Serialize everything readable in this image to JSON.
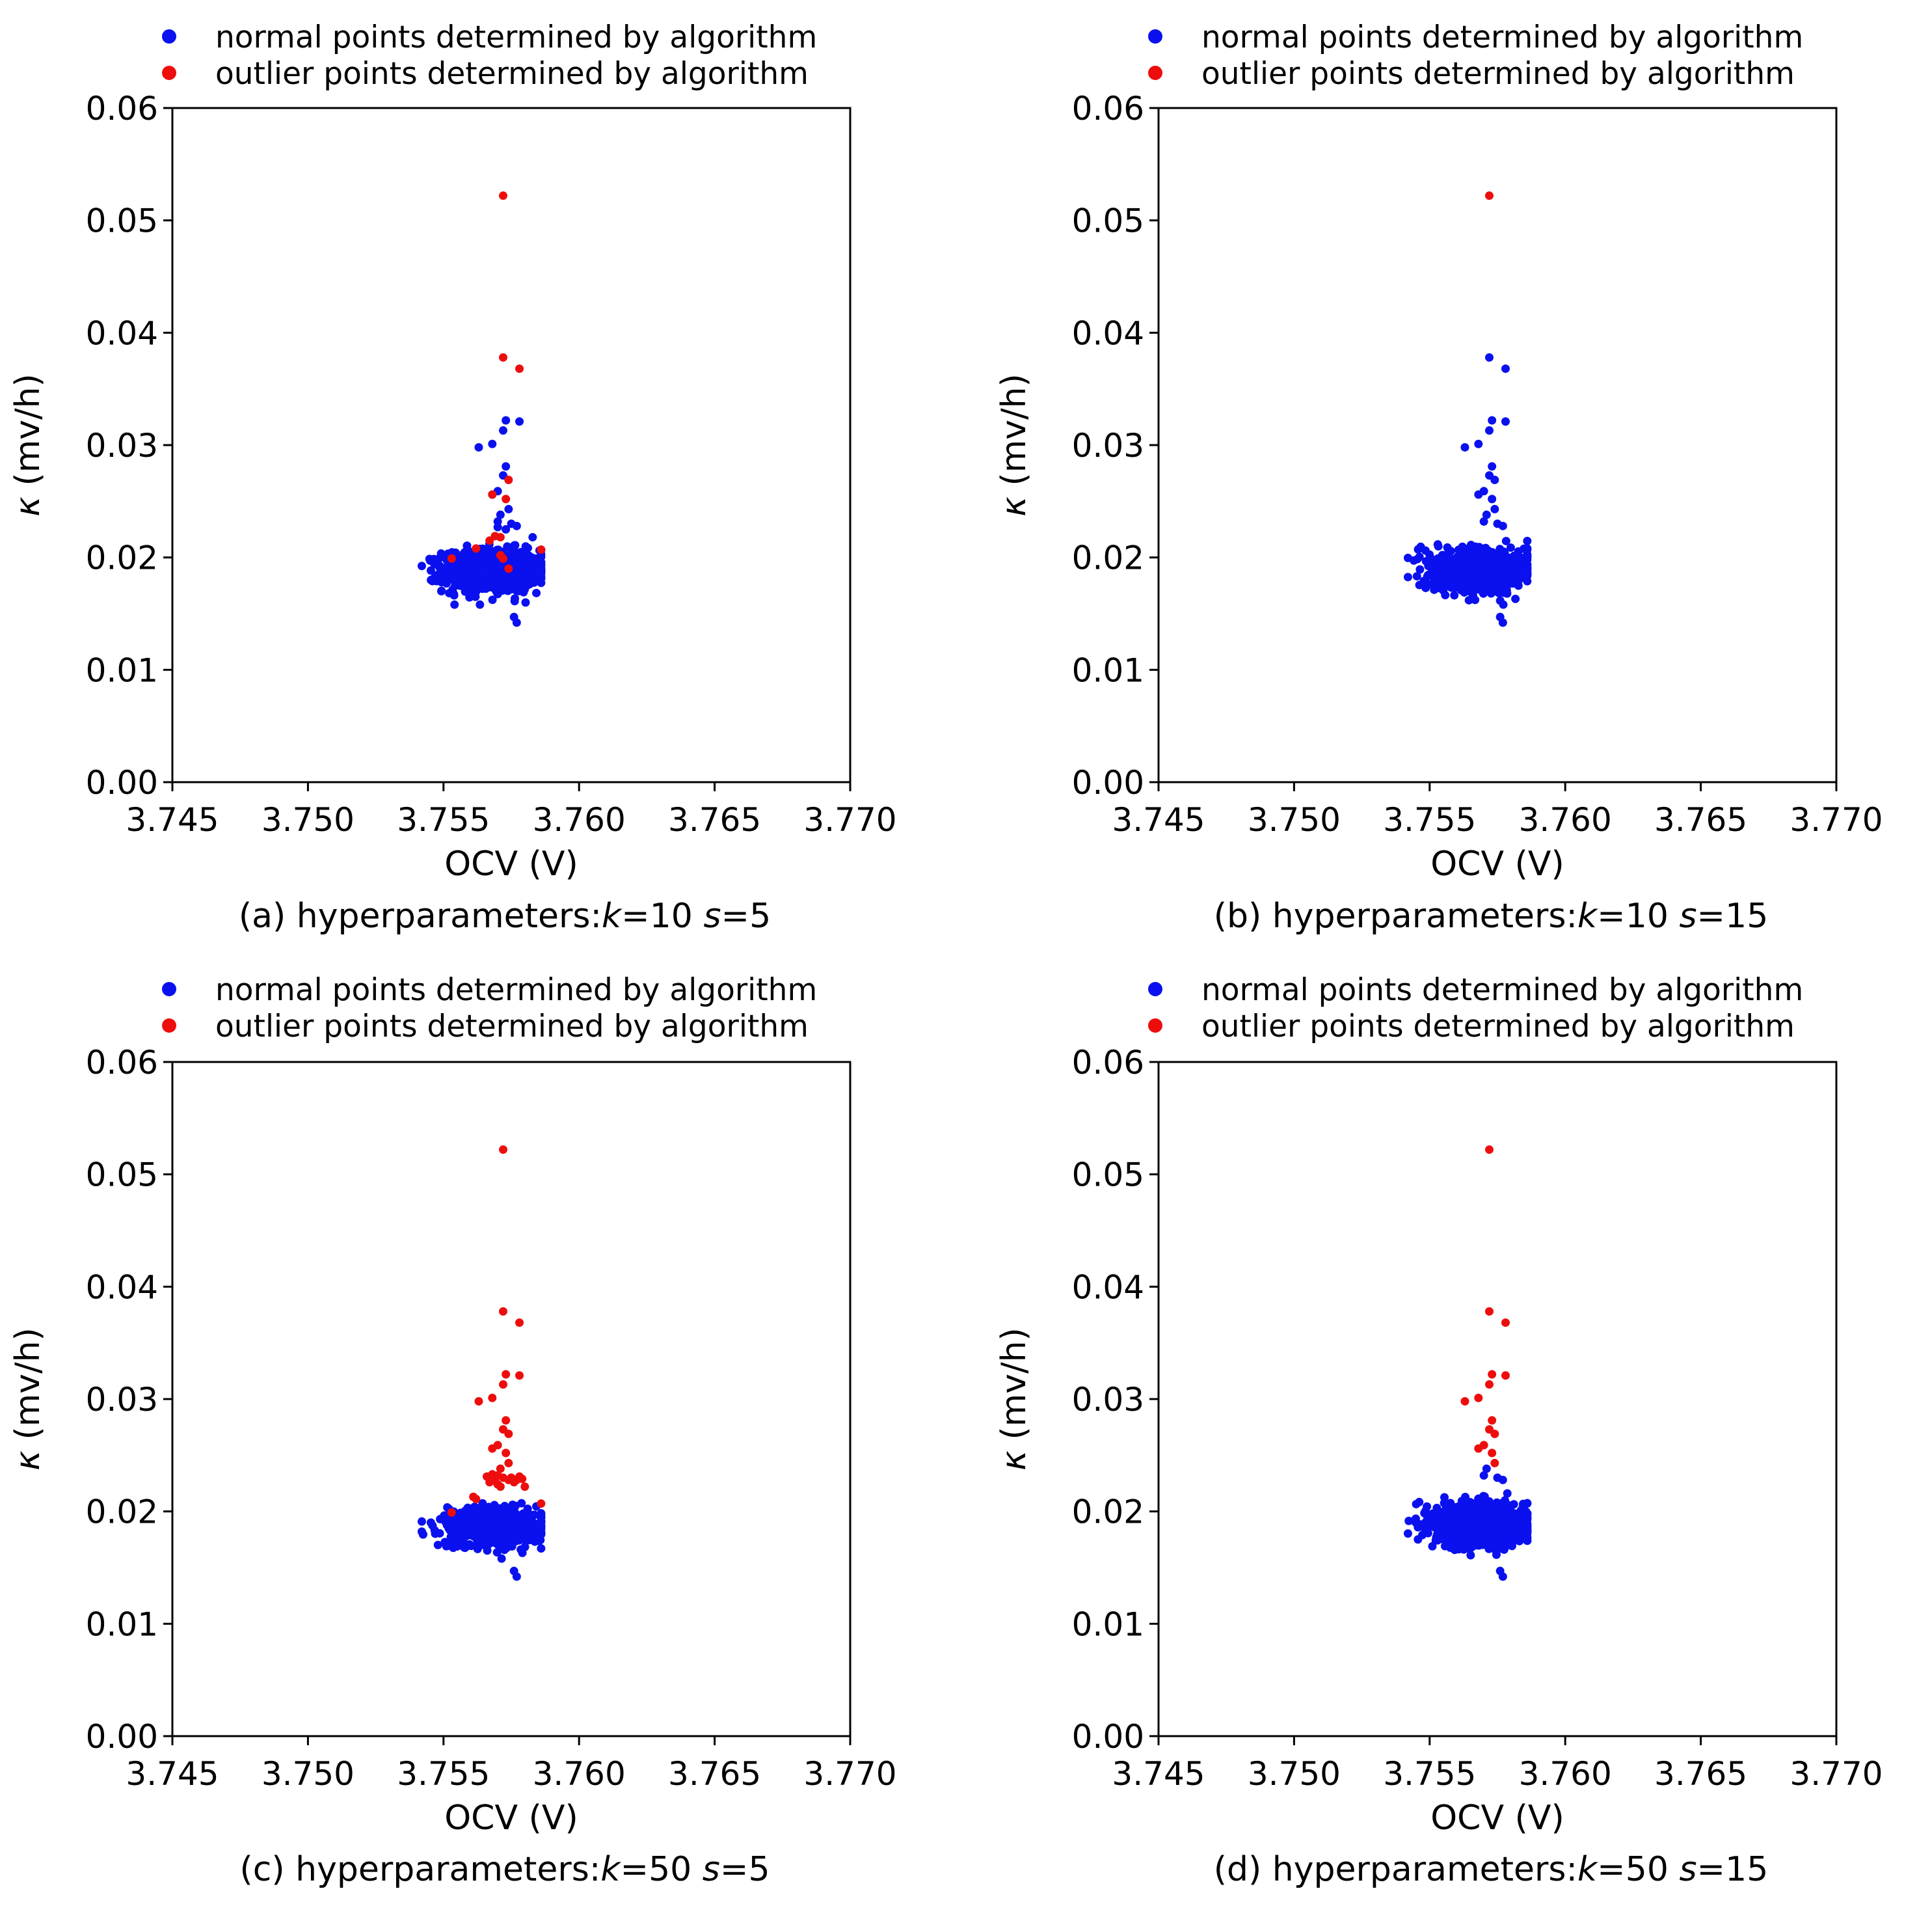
{
  "figure": {
    "legend": {
      "normal_label": "normal points determined by algorithm",
      "outlier_label": "outlier points determined by algorithm",
      "normal_color": "#0a10ee",
      "outlier_color": "#ee0d0d"
    }
  },
  "chart_data": [
    {
      "type": "scatter",
      "panel": "a",
      "caption": {
        "prefix": "(a) hyperparameters:",
        "k_symbol": "k",
        "k_value": "=10 ",
        "s_symbol": "s",
        "s_value": "=5"
      },
      "xlabel": "OCV (V)",
      "ylabel_symbol": "κ",
      "ylabel_unit": " (mv/h)",
      "xlim": [
        3.745,
        3.77
      ],
      "ylim": [
        0.0,
        0.06
      ],
      "xticks": [
        "3.745",
        "3.750",
        "3.755",
        "3.760",
        "3.765",
        "3.770"
      ],
      "yticks": [
        "0.00",
        "0.01",
        "0.02",
        "0.03",
        "0.04",
        "0.05",
        "0.06"
      ],
      "series": [
        {
          "name": "normal points determined by algorithm",
          "color": "#0a10ee",
          "points": [
            [
              3.7563,
              0.0298
            ],
            [
              3.7568,
              0.0301
            ],
            [
              3.7572,
              0.0313
            ],
            [
              3.7573,
              0.0322
            ],
            [
              3.7578,
              0.0321
            ],
            [
              3.7572,
              0.0273
            ],
            [
              3.7573,
              0.0281
            ],
            [
              3.757,
              0.0259
            ],
            [
              3.7568,
              0.0256
            ],
            [
              3.7574,
              0.0243
            ],
            [
              3.7571,
              0.0238
            ],
            [
              3.757,
              0.0232
            ],
            [
              3.7575,
              0.023
            ],
            [
              3.7577,
              0.0228
            ],
            [
              3.757,
              0.0227
            ],
            [
              3.7573,
              0.0225
            ],
            [
              3.7577,
              0.0142
            ],
            [
              3.7576,
              0.0147
            ]
          ],
          "cluster": {
            "x_center": 3.7568,
            "x_spread": 0.0009,
            "y_center": 0.0188,
            "y_spread": 0.0011,
            "count": 900
          }
        },
        {
          "name": "outlier points determined by algorithm",
          "color": "#ee0d0d",
          "points": [
            [
              3.7572,
              0.0522
            ],
            [
              3.7572,
              0.0378
            ],
            [
              3.7578,
              0.0368
            ],
            [
              3.7574,
              0.0269
            ],
            [
              3.7573,
              0.0252
            ],
            [
              3.7568,
              0.0256
            ],
            [
              3.7569,
              0.0219
            ],
            [
              3.7571,
              0.0218
            ],
            [
              3.7567,
              0.0215
            ],
            [
              3.7571,
              0.0202
            ],
            [
              3.7572,
              0.0199
            ],
            [
              3.7586,
              0.0207
            ],
            [
              3.7553,
              0.0199
            ],
            [
              3.7574,
              0.019
            ],
            [
              3.7562,
              0.0208
            ]
          ]
        }
      ]
    },
    {
      "type": "scatter",
      "panel": "b",
      "caption": {
        "prefix": "(b) hyperparameters:",
        "k_symbol": "k",
        "k_value": "=10 ",
        "s_symbol": "s",
        "s_value": "=15"
      },
      "xlabel": "OCV (V)",
      "ylabel_symbol": "κ",
      "ylabel_unit": " (mv/h)",
      "xlim": [
        3.745,
        3.77
      ],
      "ylim": [
        0.0,
        0.06
      ],
      "xticks": [
        "3.745",
        "3.750",
        "3.755",
        "3.760",
        "3.765",
        "3.770"
      ],
      "yticks": [
        "0.00",
        "0.01",
        "0.02",
        "0.03",
        "0.04",
        "0.05",
        "0.06"
      ],
      "series": [
        {
          "name": "normal points determined by algorithm",
          "color": "#0a10ee",
          "points": [
            [
              3.7572,
              0.0378
            ],
            [
              3.7578,
              0.0368
            ],
            [
              3.7563,
              0.0298
            ],
            [
              3.7568,
              0.0301
            ],
            [
              3.7572,
              0.0313
            ],
            [
              3.7573,
              0.0322
            ],
            [
              3.7578,
              0.0321
            ],
            [
              3.7572,
              0.0273
            ],
            [
              3.7573,
              0.0281
            ],
            [
              3.7574,
              0.0269
            ],
            [
              3.757,
              0.0259
            ],
            [
              3.7568,
              0.0256
            ],
            [
              3.7573,
              0.0252
            ],
            [
              3.7574,
              0.0243
            ],
            [
              3.7571,
              0.0238
            ],
            [
              3.757,
              0.0232
            ],
            [
              3.7575,
              0.023
            ],
            [
              3.7577,
              0.0228
            ],
            [
              3.7577,
              0.0142
            ],
            [
              3.7576,
              0.0147
            ],
            [
              3.7586,
              0.0207
            ],
            [
              3.7553,
              0.0199
            ]
          ],
          "cluster": {
            "x_center": 3.7568,
            "x_spread": 0.0009,
            "y_center": 0.0188,
            "y_spread": 0.0011,
            "count": 900
          }
        },
        {
          "name": "outlier points determined by algorithm",
          "color": "#ee0d0d",
          "points": [
            [
              3.7572,
              0.0522
            ]
          ]
        }
      ]
    },
    {
      "type": "scatter",
      "panel": "c",
      "caption": {
        "prefix": "(c) hyperparameters:",
        "k_symbol": "k",
        "k_value": "=50 ",
        "s_symbol": "s",
        "s_value": "=5"
      },
      "xlabel": "OCV (V)",
      "ylabel_symbol": "κ",
      "ylabel_unit": " (mv/h)",
      "xlim": [
        3.745,
        3.77
      ],
      "ylim": [
        0.0,
        0.06
      ],
      "xticks": [
        "3.745",
        "3.750",
        "3.755",
        "3.760",
        "3.765",
        "3.770"
      ],
      "yticks": [
        "0.00",
        "0.01",
        "0.02",
        "0.03",
        "0.04",
        "0.05",
        "0.06"
      ],
      "series": [
        {
          "name": "normal points determined by algorithm",
          "color": "#0a10ee",
          "points": [
            [
              3.7577,
              0.0142
            ],
            [
              3.7576,
              0.0147
            ],
            [
              3.7542,
              0.0182
            ]
          ],
          "cluster": {
            "x_center": 3.7568,
            "x_spread": 0.0009,
            "y_center": 0.0186,
            "y_spread": 0.001,
            "count": 850
          }
        },
        {
          "name": "outlier points determined by algorithm",
          "color": "#ee0d0d",
          "points": [
            [
              3.7572,
              0.0522
            ],
            [
              3.7572,
              0.0378
            ],
            [
              3.7578,
              0.0368
            ],
            [
              3.7563,
              0.0298
            ],
            [
              3.7568,
              0.0301
            ],
            [
              3.7572,
              0.0313
            ],
            [
              3.7573,
              0.0322
            ],
            [
              3.7578,
              0.0321
            ],
            [
              3.7572,
              0.0273
            ],
            [
              3.7573,
              0.0281
            ],
            [
              3.7574,
              0.0269
            ],
            [
              3.757,
              0.0259
            ],
            [
              3.7568,
              0.0256
            ],
            [
              3.7573,
              0.0252
            ],
            [
              3.7574,
              0.0243
            ],
            [
              3.7571,
              0.0238
            ],
            [
              3.757,
              0.0232
            ],
            [
              3.7575,
              0.023
            ],
            [
              3.7577,
              0.0228
            ],
            [
              3.7566,
              0.0231
            ],
            [
              3.7568,
              0.0233
            ],
            [
              3.7572,
              0.023
            ],
            [
              3.7574,
              0.0228
            ],
            [
              3.7576,
              0.0226
            ],
            [
              3.7579,
              0.0229
            ],
            [
              3.757,
              0.0224
            ],
            [
              3.7571,
              0.0222
            ],
            [
              3.7569,
              0.0227
            ],
            [
              3.7578,
              0.0231
            ],
            [
              3.7567,
              0.0226
            ],
            [
              3.7561,
              0.0213
            ],
            [
              3.7562,
              0.0211
            ],
            [
              3.7586,
              0.0207
            ],
            [
              3.7553,
              0.0199
            ],
            [
              3.758,
              0.0222
            ]
          ]
        }
      ]
    },
    {
      "type": "scatter",
      "panel": "d",
      "caption": {
        "prefix": "(d) hyperparameters:",
        "k_symbol": "k",
        "k_value": "=50 ",
        "s_symbol": "s",
        "s_value": "=15"
      },
      "xlabel": "OCV (V)",
      "ylabel_symbol": "κ",
      "ylabel_unit": " (mv/h)",
      "xlim": [
        3.745,
        3.77
      ],
      "ylim": [
        0.0,
        0.06
      ],
      "xticks": [
        "3.745",
        "3.750",
        "3.755",
        "3.760",
        "3.765",
        "3.770"
      ],
      "yticks": [
        "0.00",
        "0.01",
        "0.02",
        "0.03",
        "0.04",
        "0.05",
        "0.06"
      ],
      "series": [
        {
          "name": "normal points determined by algorithm",
          "color": "#0a10ee",
          "points": [
            [
              3.757,
              0.0232
            ],
            [
              3.7575,
              0.023
            ],
            [
              3.7577,
              0.0228
            ],
            [
              3.7571,
              0.0238
            ],
            [
              3.7577,
              0.0142
            ],
            [
              3.7576,
              0.0147
            ],
            [
              3.7586,
              0.0207
            ],
            [
              3.7553,
              0.0199
            ]
          ],
          "cluster": {
            "x_center": 3.7568,
            "x_spread": 0.0009,
            "y_center": 0.0188,
            "y_spread": 0.0011,
            "count": 900
          }
        },
        {
          "name": "outlier points determined by algorithm",
          "color": "#ee0d0d",
          "points": [
            [
              3.7572,
              0.0522
            ],
            [
              3.7572,
              0.0378
            ],
            [
              3.7578,
              0.0368
            ],
            [
              3.7563,
              0.0298
            ],
            [
              3.7568,
              0.0301
            ],
            [
              3.7572,
              0.0313
            ],
            [
              3.7573,
              0.0322
            ],
            [
              3.7578,
              0.0321
            ],
            [
              3.7572,
              0.0273
            ],
            [
              3.7573,
              0.0281
            ],
            [
              3.7574,
              0.0269
            ],
            [
              3.757,
              0.0259
            ],
            [
              3.7568,
              0.0256
            ],
            [
              3.7573,
              0.0252
            ],
            [
              3.7574,
              0.0243
            ]
          ]
        }
      ]
    }
  ]
}
